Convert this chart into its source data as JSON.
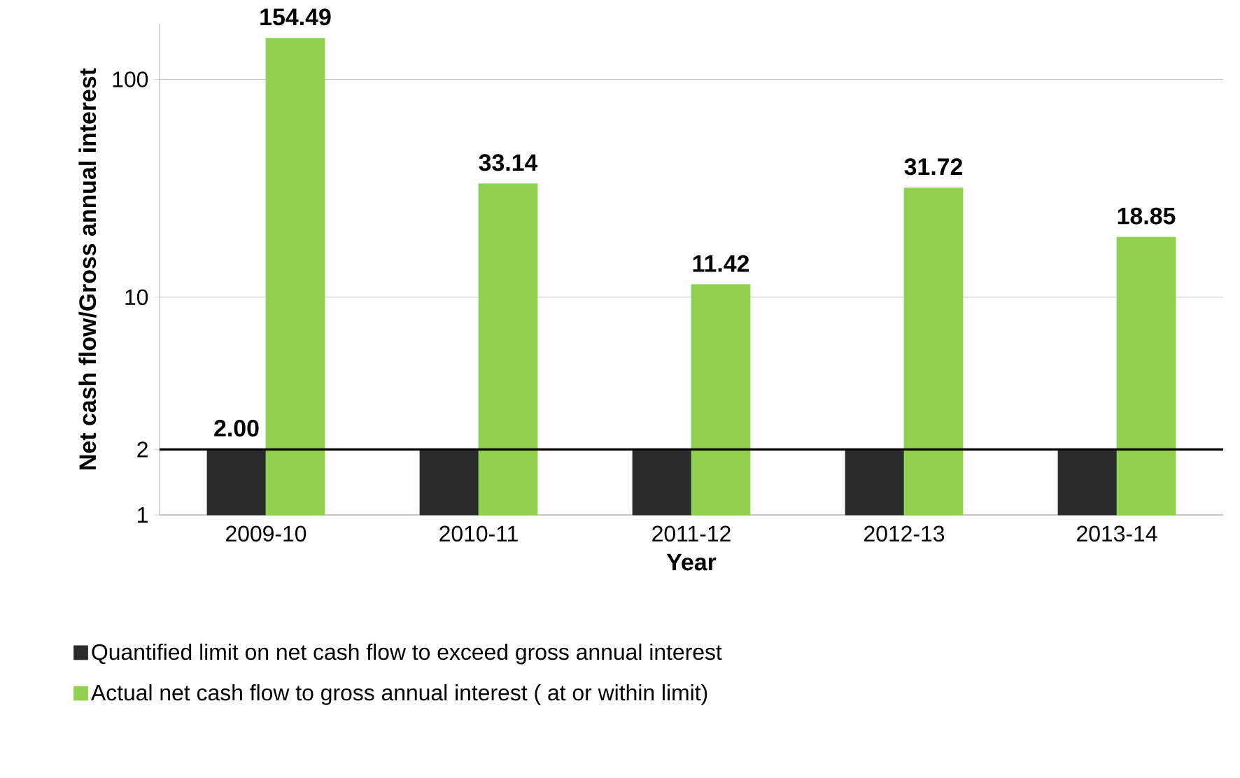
{
  "chart_data": {
    "type": "bar",
    "xlabel": "Year",
    "ylabel": "Net cash flow/Gross annual interest",
    "categories": [
      "2009-10",
      "2010-11",
      "2011-12",
      "2012-13",
      "2013-14"
    ],
    "series": [
      {
        "name": "Quantified limit on net cash flow to exceed gross annual interest",
        "color": "#2b2b2b",
        "values": [
          2,
          2,
          2,
          2,
          2
        ],
        "value_labels": [
          "2.00",
          null,
          null,
          null,
          null
        ]
      },
      {
        "name": "Actual net cash flow to  gross annual interest ( at or within limit)",
        "color": "#92d050",
        "values": [
          154.49,
          33.14,
          11.42,
          31.72,
          18.85
        ],
        "value_labels": [
          "154.49",
          "33.14",
          "11.42",
          "31.72",
          "18.85"
        ]
      }
    ],
    "log": true,
    "ylim": [
      1,
      180
    ],
    "yticks": [
      1,
      2,
      10,
      100
    ],
    "grid": "y",
    "legend": "bottom",
    "ref_lines": [
      {
        "axis": "y",
        "value": 2,
        "color": "#000000",
        "line_style": "solid"
      }
    ]
  }
}
